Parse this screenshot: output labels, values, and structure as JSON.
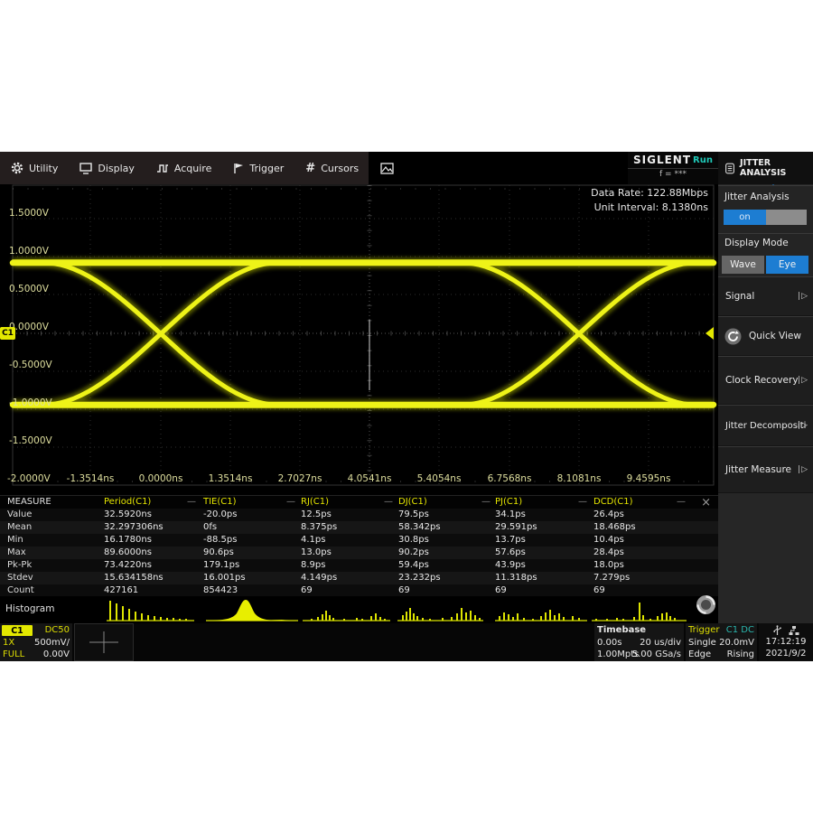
{
  "menu": {
    "utility": "Utility",
    "display": "Display",
    "acquire": "Acquire",
    "trigger": "Trigger",
    "cursors": "Cursors"
  },
  "brand": {
    "name": "SIGLENT",
    "run": "Run",
    "freq": "f = ***"
  },
  "sidebar": {
    "title": "JITTER ANALYSIS",
    "jitter_analysis_label": "Jitter Analysis",
    "toggle_on": "on",
    "display_mode_label": "Display Mode",
    "wave": "Wave",
    "eye": "Eye",
    "signal": "Signal",
    "quick_view": "Quick View",
    "clock_recovery": "Clock Recovery",
    "jitter_decomposition": "Jitter Decomposition",
    "jitter_measure": "Jitter Measure",
    "arrow": "|▷"
  },
  "plot": {
    "data_rate": "Data Rate: 122.88Mbps",
    "unit_interval": "Unit Interval: 8.1380ns",
    "channel_marker": "C1",
    "y_labels": [
      "1.5000V",
      "1.0000V",
      "0.5000V",
      "0.0000V",
      "-0.5000V",
      "-1.0000V",
      "-1.5000V"
    ],
    "corner_label": "-2.0000V",
    "x_labels": [
      "-1.3514ns",
      "0.0000ns",
      "1.3514ns",
      "2.7027ns",
      "4.0541ns",
      "5.4054ns",
      "6.7568ns",
      "8.1081ns",
      "9.4595ns"
    ]
  },
  "measure": {
    "corner": "MEASURE",
    "columns": [
      "Period(C1)",
      "TIE(C1)",
      "RJ(C1)",
      "DJ(C1)",
      "PJ(C1)",
      "DCD(C1)"
    ],
    "rows": [
      {
        "label": "Value",
        "values": [
          "32.5920ns",
          "-20.0ps",
          "12.5ps",
          "79.5ps",
          "34.1ps",
          "26.4ps"
        ]
      },
      {
        "label": "Mean",
        "values": [
          "32.297306ns",
          "0fs",
          "8.375ps",
          "58.342ps",
          "29.591ps",
          "18.468ps"
        ]
      },
      {
        "label": "Min",
        "values": [
          "16.1780ns",
          "-88.5ps",
          "4.1ps",
          "30.8ps",
          "13.7ps",
          "10.4ps"
        ]
      },
      {
        "label": "Max",
        "values": [
          "89.6000ns",
          "90.6ps",
          "13.0ps",
          "90.2ps",
          "57.6ps",
          "28.4ps"
        ]
      },
      {
        "label": "Pk-Pk",
        "values": [
          "73.4220ns",
          "179.1ps",
          "8.9ps",
          "59.4ps",
          "43.9ps",
          "18.0ps"
        ]
      },
      {
        "label": "Stdev",
        "values": [
          "15.634158ns",
          "16.001ps",
          "4.149ps",
          "23.232ps",
          "11.318ps",
          "7.279ps"
        ]
      },
      {
        "label": "Count",
        "values": [
          "427161",
          "854423",
          "69",
          "69",
          "69",
          "69"
        ]
      }
    ],
    "close": "×",
    "collapse_dash": "—"
  },
  "histogram_label": "Histogram",
  "bottom": {
    "channel": {
      "name": "C1",
      "coupling": "DC50",
      "probe": "1X",
      "scale": "500mV/",
      "bw": "FULL",
      "offset": "0.00V"
    },
    "timebase": {
      "title": "Timebase",
      "delay": "0.00s",
      "scale": "20 us/div",
      "mem": "1.00Mpts",
      "srate": "5.00 GSa/s"
    },
    "trigger": {
      "title": "Trigger",
      "source": "C1 DC",
      "mode": "Single",
      "level": "20.0mV",
      "type": "Edge",
      "slope": "Rising"
    },
    "clock": {
      "time": "17:12:19",
      "date": "2021/9/2"
    }
  },
  "colors": {
    "accent_blue": "#1d7dd2",
    "trace_yellow": "#eef318",
    "run_teal": "#1fc8b7",
    "channel_yellow": "#e3e800"
  }
}
